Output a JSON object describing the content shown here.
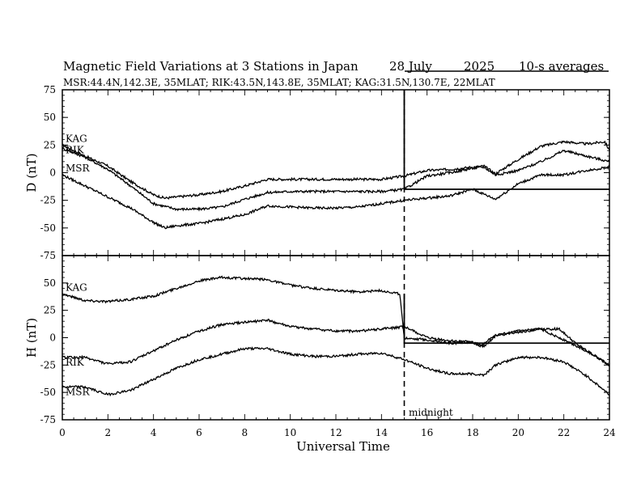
{
  "title": "Magnetic Field Variations at 3 Stations in Japan",
  "date_day": "28 July",
  "date_year": "2025",
  "averaging": "10-s averages",
  "stations_line": "MSR:44.4N,142.3E, 35MLAT;  RIK:43.5N,143.8E, 35MLAT;  KAG:31.5N,130.7E, 22MLAT",
  "midnight_label": "midnight",
  "xlabel": "Universal Time",
  "x_ticks": [
    "0",
    "2",
    "4",
    "6",
    "8",
    "10",
    "12",
    "14",
    "16",
    "18",
    "20",
    "22",
    "24"
  ],
  "chart_data": [
    {
      "type": "line",
      "panel": "D",
      "ylabel": "D (nT)",
      "xlim": [
        0,
        24
      ],
      "ylim": [
        -75,
        75
      ],
      "y_ticks": [
        "75",
        "50",
        "25",
        "0",
        "-25",
        "-50",
        "-75"
      ],
      "step_marker": {
        "x": 15,
        "y_from": 75,
        "y_to": -15
      },
      "series": [
        {
          "name": "KAG",
          "x": [
            0,
            1,
            2,
            3,
            4,
            4.5,
            5,
            6,
            7,
            8,
            9,
            10,
            11,
            12,
            13,
            14,
            15,
            16,
            17,
            18,
            18.5,
            19,
            20,
            21,
            22,
            23,
            23.8,
            24
          ],
          "y": [
            25,
            15,
            6,
            -8,
            -20,
            -23,
            -22,
            -20,
            -17,
            -12,
            -6,
            -6,
            -6,
            -6,
            -6,
            -6,
            -3,
            2,
            3,
            5,
            6,
            -1,
            12,
            24,
            28,
            26,
            28,
            20
          ]
        },
        {
          "name": "RIK",
          "x": [
            0,
            1,
            2,
            3,
            4,
            5,
            6,
            7,
            8,
            9,
            10,
            11,
            12,
            13,
            14,
            15,
            16,
            17,
            18,
            18.5,
            19,
            20,
            21,
            22,
            23,
            24
          ],
          "y": [
            22,
            14,
            3,
            -12,
            -28,
            -33,
            -33,
            -31,
            -24,
            -18,
            -17,
            -17,
            -17,
            -17,
            -17,
            -15,
            -3,
            0,
            4,
            5,
            -2,
            2,
            10,
            20,
            15,
            10
          ]
        },
        {
          "name": "MSR",
          "x": [
            0,
            1,
            2,
            3,
            4,
            4.5,
            5,
            6,
            7,
            8,
            9,
            10,
            11,
            12,
            13,
            14,
            15,
            16,
            17,
            18,
            19,
            20,
            21,
            22,
            23,
            24
          ],
          "y": [
            -2,
            -12,
            -22,
            -32,
            -45,
            -50,
            -48,
            -46,
            -42,
            -38,
            -30,
            -31,
            -32,
            -32,
            -31,
            -28,
            -25,
            -23,
            -21,
            -15,
            -24,
            -10,
            -2,
            -2,
            2,
            5
          ]
        }
      ]
    },
    {
      "type": "line",
      "panel": "H",
      "ylabel": "H (nT)",
      "xlim": [
        0,
        24
      ],
      "ylim": [
        -75,
        75
      ],
      "y_ticks": [
        "50",
        "25",
        "0",
        "-25",
        "-50",
        "-75"
      ],
      "step_marker": {
        "x": 15,
        "y_from": 40,
        "y_to": -5
      },
      "series": [
        {
          "name": "KAG",
          "x": [
            0,
            1,
            2,
            3,
            4,
            5,
            6,
            7,
            8,
            9,
            10,
            11,
            12,
            13,
            14,
            14.8,
            15,
            16,
            17,
            18,
            18.3,
            19,
            20,
            21,
            21.8,
            22.5,
            23,
            24
          ],
          "y": [
            40,
            34,
            33,
            35,
            38,
            45,
            52,
            55,
            54,
            53,
            48,
            45,
            43,
            42,
            43,
            40,
            0,
            -2,
            -5,
            -4,
            -8,
            2,
            5,
            8,
            8,
            -5,
            -12,
            -25
          ]
        },
        {
          "name": "RIK",
          "x": [
            0,
            1,
            2,
            3,
            4,
            5,
            6,
            7,
            8,
            9,
            10,
            11,
            12,
            13,
            14,
            15,
            16,
            17,
            18,
            18.5,
            19,
            20,
            21,
            22,
            23,
            24
          ],
          "y": [
            -18,
            -18,
            -24,
            -22,
            -12,
            -2,
            6,
            12,
            14,
            16,
            10,
            8,
            6,
            6,
            8,
            10,
            0,
            -3,
            -4,
            -8,
            2,
            6,
            8,
            -2,
            -12,
            -25
          ]
        },
        {
          "name": "MSR",
          "x": [
            0,
            1,
            2,
            3,
            4,
            5,
            6,
            7,
            8,
            9,
            10,
            11,
            12,
            13,
            14,
            15,
            16,
            17,
            18,
            18.5,
            19,
            20,
            21,
            22,
            23,
            24
          ],
          "y": [
            -45,
            -45,
            -52,
            -48,
            -38,
            -28,
            -20,
            -15,
            -10,
            -10,
            -15,
            -17,
            -17,
            -15,
            -14,
            -20,
            -28,
            -33,
            -33,
            -34,
            -25,
            -18,
            -18,
            -22,
            -35,
            -52
          ]
        }
      ]
    }
  ]
}
